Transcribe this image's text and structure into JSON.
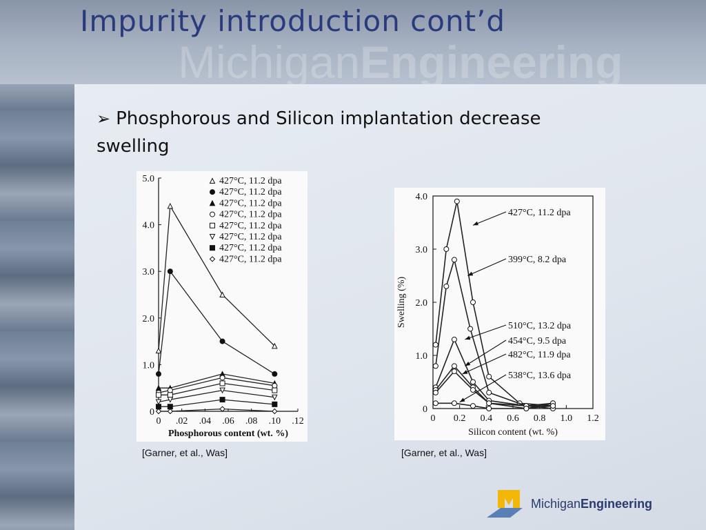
{
  "slide": {
    "title": "Impurity introduction cont’d",
    "watermark_light": "Michigan",
    "watermark_bold": "Engineering",
    "bullet_text": "Phosphorous and Silicon implantation decrease swelling"
  },
  "figures": {
    "left_citation": "[Garner, et al., Was]",
    "right_citation": "[Garner, et al., Was]"
  },
  "logo": {
    "light": "Michigan",
    "bold": "Engineering"
  },
  "chart_data": [
    {
      "type": "line",
      "xlabel": "Phosphorous content (wt. %)",
      "ylabel": "",
      "xlim": [
        0,
        0.12
      ],
      "ylim": [
        0,
        5.0
      ],
      "x_ticks": [
        "0",
        ".02",
        ".04",
        ".06",
        ".08",
        ".10",
        ".12"
      ],
      "y_ticks": [
        "0",
        "1.0",
        "2.0",
        "3.0",
        "4.0",
        "5.0"
      ],
      "legend_position": "top-right",
      "series": [
        {
          "name": "427°C, 11.2 dpa",
          "marker": "triangle-open",
          "x": [
            0,
            0.01,
            0.055,
            0.1
          ],
          "y": [
            1.3,
            4.4,
            2.5,
            1.4
          ]
        },
        {
          "name": "427°C, 11.2 dpa",
          "marker": "circle-filled",
          "x": [
            0,
            0.01,
            0.055,
            0.1
          ],
          "y": [
            0.8,
            3.0,
            1.5,
            0.8
          ]
        },
        {
          "name": "427°C, 11.2 dpa",
          "marker": "triangle-filled",
          "x": [
            0,
            0.01,
            0.055,
            0.1
          ],
          "y": [
            0.5,
            0.5,
            0.8,
            0.6
          ]
        },
        {
          "name": "427°C, 11.2 dpa",
          "marker": "circle-open",
          "x": [
            0,
            0.01,
            0.055,
            0.1
          ],
          "y": [
            0.4,
            0.45,
            0.72,
            0.55
          ]
        },
        {
          "name": "427°C, 11.2 dpa",
          "marker": "square-open",
          "x": [
            0,
            0.01,
            0.055,
            0.1
          ],
          "y": [
            0.35,
            0.35,
            0.6,
            0.45
          ]
        },
        {
          "name": "427°C, 11.2 dpa",
          "marker": "triangle-down-open",
          "x": [
            0,
            0.01,
            0.055,
            0.1
          ],
          "y": [
            0.2,
            0.25,
            0.45,
            0.3
          ]
        },
        {
          "name": "427°C, 11.2 dpa",
          "marker": "square-filled",
          "x": [
            0,
            0.01,
            0.055,
            0.1
          ],
          "y": [
            0.1,
            0.1,
            0.25,
            0.15
          ]
        },
        {
          "name": "427°C, 11.2 dpa",
          "marker": "diamond-open",
          "x": [
            0,
            0.01,
            0.055,
            0.1
          ],
          "y": [
            0.0,
            0.0,
            0.05,
            0.0
          ]
        }
      ]
    },
    {
      "type": "line",
      "xlabel": "Silicon content (wt. %)",
      "ylabel": "Swelling (%)",
      "xlim": [
        0,
        1.2
      ],
      "ylim": [
        0,
        4.0
      ],
      "x_ticks": [
        "0",
        "0.2",
        "0.4",
        "0.6",
        "0.8",
        "1.0",
        "1.2"
      ],
      "y_ticks": [
        "0",
        "1.0",
        "2.0",
        "3.0",
        "4.0"
      ],
      "series": [
        {
          "name": "427°C, 11.2 dpa",
          "x": [
            0.02,
            0.1,
            0.18,
            0.3,
            0.42,
            0.65,
            0.9
          ],
          "y": [
            1.2,
            3.0,
            3.9,
            2.0,
            0.6,
            0.1,
            0.05
          ]
        },
        {
          "name": "399°C, 8.2 dpa",
          "x": [
            0.02,
            0.1,
            0.16,
            0.28,
            0.42,
            0.7,
            0.9
          ],
          "y": [
            0.8,
            2.3,
            2.8,
            1.5,
            0.3,
            0.05,
            0.0
          ]
        },
        {
          "name": "510°C, 13.2 dpa",
          "x": [
            0.02,
            0.16,
            0.3,
            0.42,
            0.7,
            0.9
          ],
          "y": [
            0.4,
            1.3,
            0.5,
            0.15,
            0.05,
            0.05
          ]
        },
        {
          "name": "454°C, 9.5 dpa",
          "x": [
            0.02,
            0.16,
            0.3,
            0.42,
            0.7,
            0.9
          ],
          "y": [
            0.35,
            0.8,
            0.4,
            0.1,
            0.05,
            0.1
          ]
        },
        {
          "name": "482°C, 11.9 dpa",
          "x": [
            0.02,
            0.16,
            0.3,
            0.42,
            0.7,
            0.9
          ],
          "y": [
            0.3,
            0.7,
            0.35,
            0.1,
            0.0,
            0.1
          ]
        },
        {
          "name": "538°C, 13.6 dpa",
          "x": [
            0.02,
            0.16,
            0.3,
            0.42,
            0.7,
            0.9
          ],
          "y": [
            0.1,
            0.1,
            0.05,
            0.0,
            0.0,
            0.05
          ]
        }
      ]
    }
  ]
}
